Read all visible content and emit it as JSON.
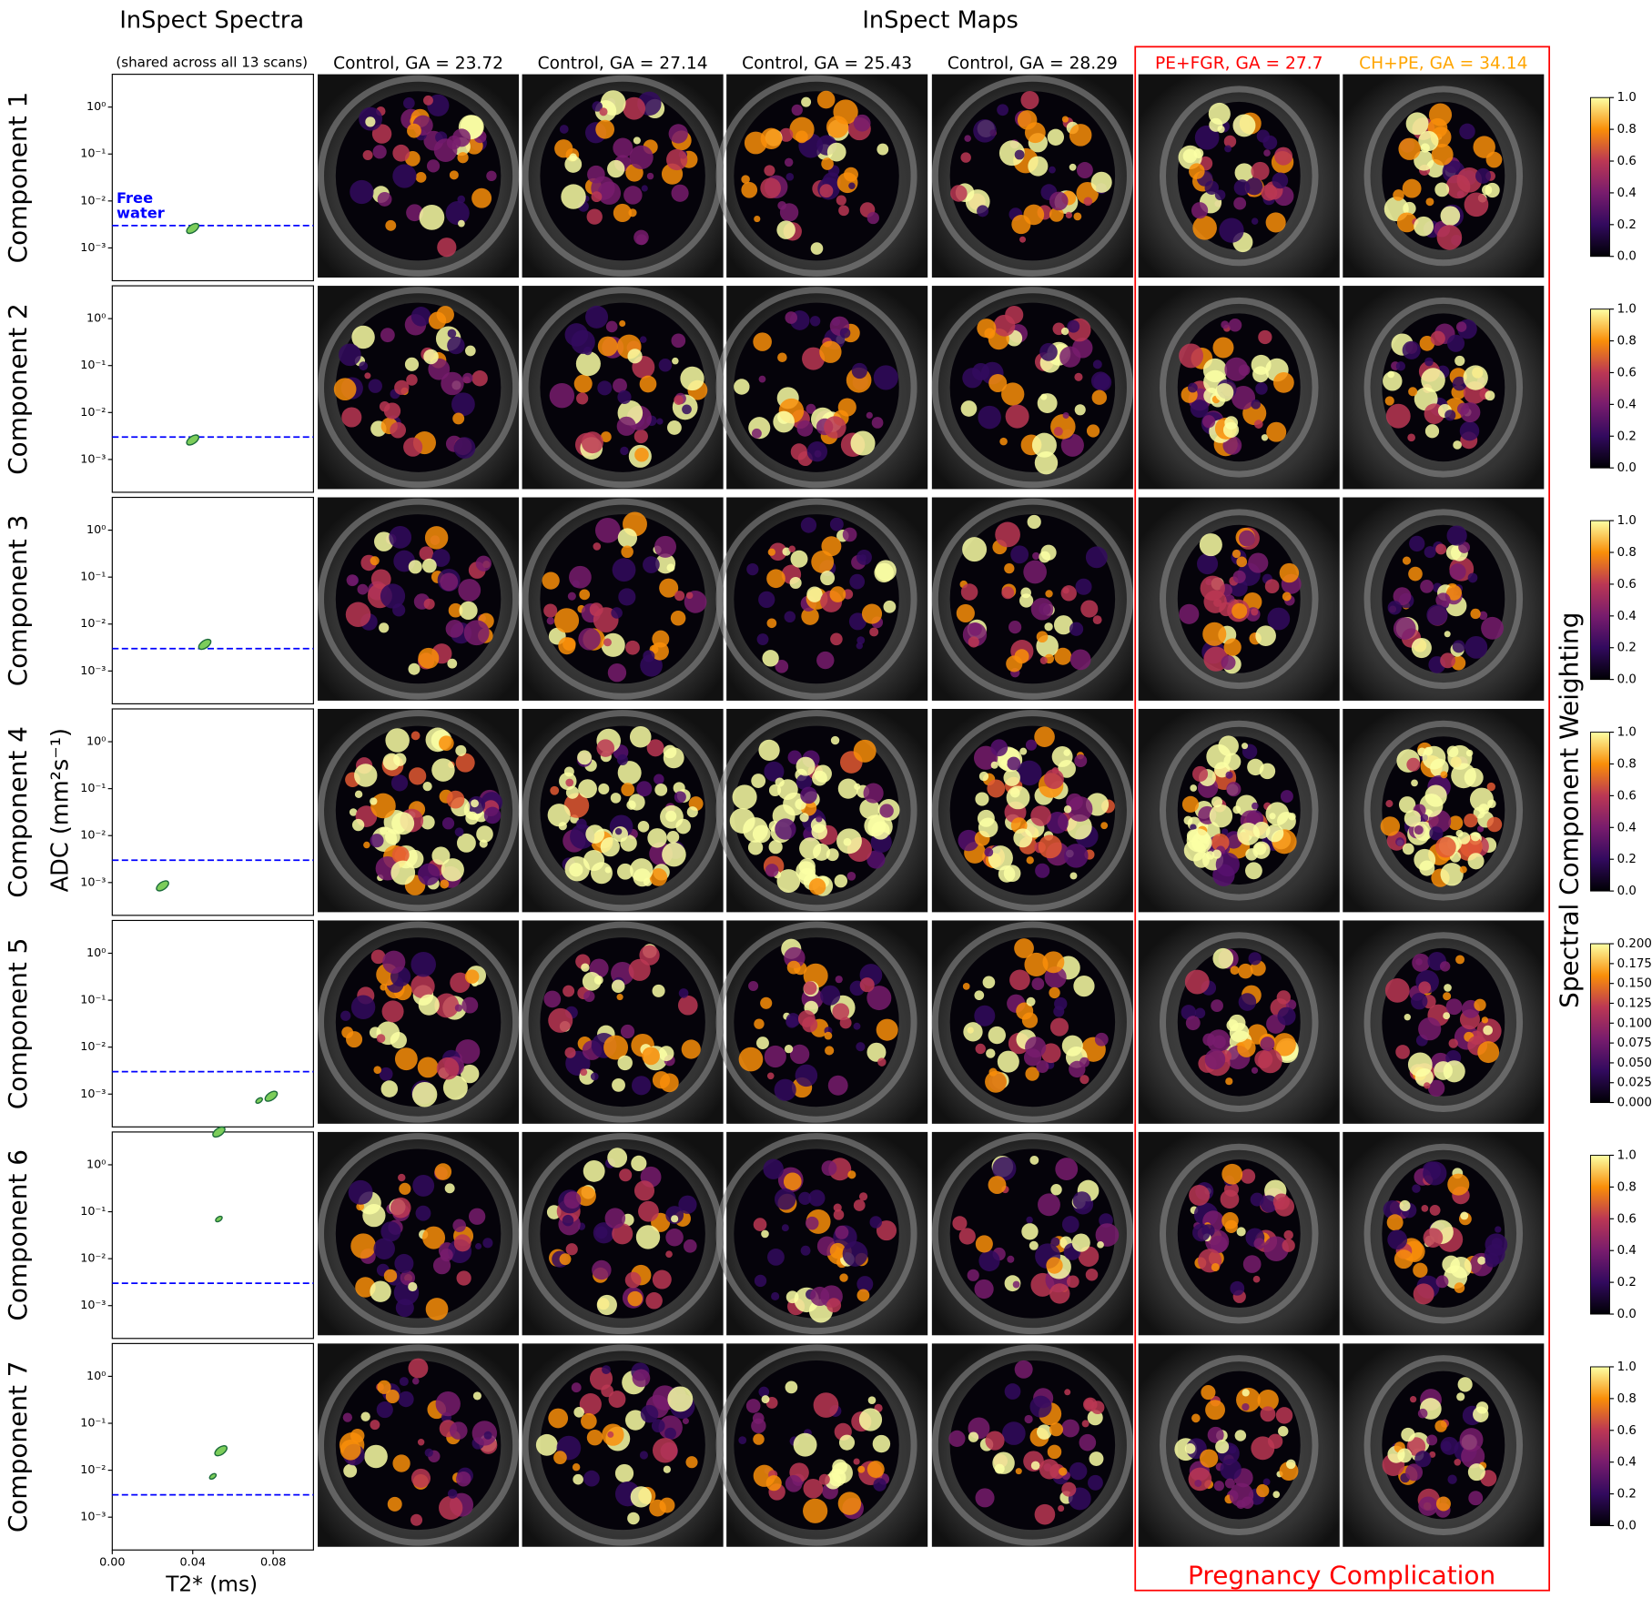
{
  "spectra_title": "InSpect Spectra",
  "maps_title": "InSpect Maps",
  "spectra_note": "(shared across all 13 scans)",
  "columns": [
    {
      "label": "Control, GA = 23.72",
      "color": "#000000"
    },
    {
      "label": "Control, GA = 27.14",
      "color": "#000000"
    },
    {
      "label": "Control, GA = 25.43",
      "color": "#000000"
    },
    {
      "label": "Control, GA = 28.29",
      "color": "#000000"
    },
    {
      "label": "PE+FGR, GA = 27.7",
      "color": "#ff0000"
    },
    {
      "label": "CH+PE, GA = 34.14",
      "color": "#ffa500"
    }
  ],
  "complication_label": "Pregnancy Complication",
  "complication_color": "#ff0000",
  "colorbar_label": "Spectral Component Weighting",
  "spectra": {
    "type": "contour",
    "x_label": "T2* (ms)",
    "y_label": "ADC (mm²s⁻¹)",
    "xlim": [
      0,
      0.1
    ],
    "xticks": [
      {
        "value": 0,
        "label": "0.00"
      },
      {
        "value": 0.04,
        "label": "0.04"
      },
      {
        "value": 0.08,
        "label": "0.08"
      }
    ],
    "ylim": [
      0.0002,
      5
    ],
    "log_y": true,
    "yticks": [
      {
        "value": 1,
        "label": "10⁰"
      },
      {
        "value": 0.1,
        "label": "10⁻¹"
      },
      {
        "value": 0.01,
        "label": "10⁻²"
      },
      {
        "value": 0.001,
        "label": "10⁻³"
      }
    ],
    "free_water_label": [
      "Free",
      "water"
    ],
    "free_water_color": "#0000ff",
    "free_water_adc": 0.003,
    "peak_color": "#7ccd5a"
  },
  "components": [
    {
      "label": "Component 1",
      "peaks": [
        {
          "t2": 0.04,
          "adc": 0.0026
        }
      ],
      "colorbar": {
        "lim": [
          0,
          1
        ],
        "ticks": [
          {
            "value": 0,
            "label": "0.0"
          },
          0.2,
          0.4,
          0.6,
          0.8,
          {
            "value": 1,
            "label": "1.0"
          }
        ]
      }
    },
    {
      "label": "Component 2",
      "peaks": [
        {
          "t2": 0.04,
          "adc": 0.0026
        }
      ],
      "colorbar": {
        "lim": [
          0,
          1
        ],
        "ticks": [
          {
            "value": 0,
            "label": "0.0"
          },
          0.2,
          0.4,
          0.6,
          0.8,
          {
            "value": 1,
            "label": "1.0"
          }
        ]
      }
    },
    {
      "label": "Component 3",
      "peaks": [
        {
          "t2": 0.046,
          "adc": 0.0037
        }
      ],
      "colorbar": {
        "lim": [
          0,
          1
        ],
        "ticks": [
          {
            "value": 0,
            "label": "0.0"
          },
          0.2,
          0.4,
          0.6,
          0.8,
          {
            "value": 1,
            "label": "1.0"
          }
        ]
      }
    },
    {
      "label": "Component 4",
      "peaks": [
        {
          "t2": 0.025,
          "adc": 0.00085
        }
      ],
      "colorbar": {
        "lim": [
          0,
          1
        ],
        "ticks": [
          {
            "value": 0,
            "label": "0.0"
          },
          0.2,
          0.4,
          0.6,
          0.8,
          {
            "value": 1,
            "label": "1.0"
          }
        ]
      }
    },
    {
      "label": "Component 5",
      "peaks": [
        {
          "t2": 0.079,
          "adc": 0.0009
        },
        {
          "t2": 0.073,
          "adc": 0.00073
        }
      ],
      "colorbar": {
        "lim": [
          0,
          0.2
        ],
        "ticks": [
          {
            "value": 0,
            "label": "0.000"
          },
          0.025,
          {
            "value": 0.05,
            "label": "0.050"
          },
          0.075,
          {
            "value": 0.1,
            "label": "0.100"
          },
          0.125,
          {
            "value": 0.15,
            "label": "0.150"
          },
          0.175,
          {
            "value": 0.2,
            "label": "0.200"
          }
        ]
      }
    },
    {
      "label": "Component 6",
      "peaks": [
        {
          "t2": 0.053,
          "adc": 5
        },
        {
          "t2": 0.053,
          "adc": 0.07
        }
      ],
      "colorbar": {
        "lim": [
          0,
          1
        ],
        "ticks": [
          {
            "value": 0,
            "label": "0.0"
          },
          0.2,
          0.4,
          0.6,
          0.8,
          {
            "value": 1,
            "label": "1.0"
          }
        ]
      }
    },
    {
      "label": "Component 7",
      "peaks": [
        {
          "t2": 0.054,
          "adc": 0.026
        },
        {
          "t2": 0.05,
          "adc": 0.0074
        }
      ],
      "colorbar": {
        "lim": [
          0,
          1
        ],
        "ticks": [
          {
            "value": 0,
            "label": "0.0"
          },
          0.2,
          0.4,
          0.6,
          0.8,
          {
            "value": 1,
            "label": "1.0"
          }
        ]
      }
    }
  ]
}
